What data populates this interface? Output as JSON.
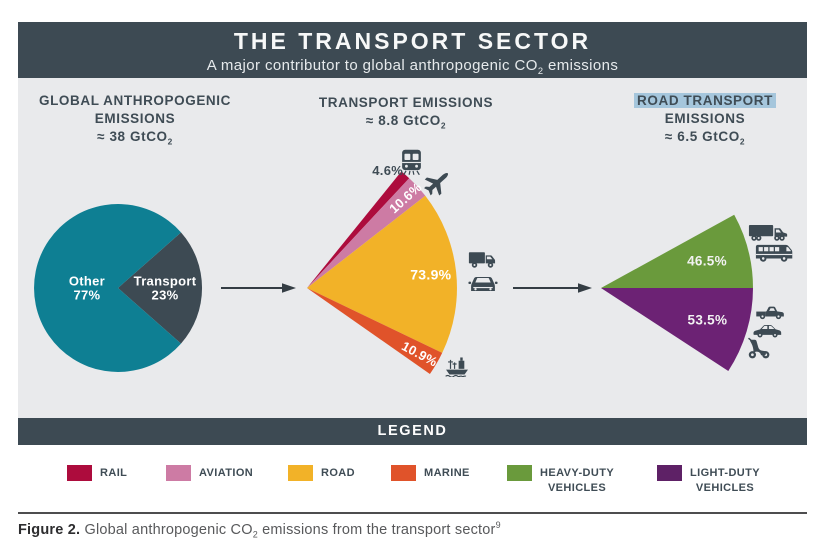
{
  "header": {
    "title": "THE TRANSPORT SECTOR",
    "subtitle_pre": "A major contributor to global anthropogenic CO",
    "subtitle_sub": "2",
    "subtitle_post": " emissions"
  },
  "sections": {
    "global": {
      "line1": "GLOBAL ANTHROPOGENIC",
      "line2": "EMISSIONS",
      "approx_pre": "≈ 38 GtCO",
      "approx_sub": "2"
    },
    "transport": {
      "line1": "TRANSPORT EMISSIONS",
      "approx_pre": "≈ 8.8 GtCO",
      "approx_sub": "2"
    },
    "road": {
      "line1_highlight": "ROAD TRANSPORT",
      "line2": "EMISSIONS",
      "approx_pre": "≈ 6.5 GtCO",
      "approx_sub": "2"
    }
  },
  "colors": {
    "slate": "#3d4a53",
    "panel_gray": "#e9eaec",
    "teal_other": "#0e7f93",
    "rail": "#ad0c3d",
    "aviation": "#cd7ba4",
    "road": "#f2b228",
    "marine": "#e0532a",
    "heavy_duty": "#6a9a3c",
    "light_duty": "#6c2274",
    "highlight_blue": "#a5c6dc"
  },
  "legend": {
    "title": "LEGEND",
    "items": [
      {
        "label": "RAIL",
        "color": "#ad0c3d"
      },
      {
        "label": "AVIATION",
        "color": "#cd7ba4"
      },
      {
        "label": "ROAD",
        "color": "#f2b228"
      },
      {
        "label": "MARINE",
        "color": "#e0532a"
      },
      {
        "label": "HEAVY-DUTY",
        "label2": "VEHICLES",
        "color": "#6a9a3c"
      },
      {
        "label": "LIGHT-DUTY",
        "label2": "VEHICLES",
        "color": "#5e2166"
      }
    ]
  },
  "caption": {
    "bold": "Figure 2.",
    "pre": " Global anthropogenic CO",
    "sub": "2",
    "post": " emissions from the transport sector",
    "sup": "9"
  },
  "chart_data": [
    {
      "id": "global-pie",
      "type": "pie",
      "title": "GLOBAL ANTHROPOGENIC EMISSIONS ≈ 38 GtCO2",
      "total_value": 38,
      "units": "GtCO2",
      "apex": [
        100,
        98
      ],
      "radius": 84,
      "start_angle": 41.4,
      "sweep": 360,
      "slices": [
        {
          "name": "Transport",
          "pct": 23,
          "color": "#3d4a53",
          "label_lines": [
            "Transport",
            "23%"
          ],
          "label_r": 0.56,
          "label_rot": 0,
          "label_color": "#ffffff",
          "label_size": 13
        },
        {
          "name": "Other",
          "pct": 77,
          "color": "#0e7f93",
          "label_lines": [
            "Other",
            "77%"
          ],
          "label_r": 0.37,
          "label_rot": 0,
          "label_color": "#ffffff",
          "label_size": 13
        }
      ]
    },
    {
      "id": "transport-fan",
      "type": "pie",
      "style": "fan",
      "title": "TRANSPORT EMISSIONS ≈ 8.8 GtCO2",
      "total_value": 8.8,
      "units": "GtCO2",
      "apex": [
        12,
        138
      ],
      "radius": 150,
      "start_angle": 51,
      "sweep": 86,
      "slices": [
        {
          "name": "Rail",
          "pct": 4.6,
          "color": "#ad0c3d",
          "label_lines": [
            "4.6%"
          ],
          "label_r": 0.95,
          "label_angle": 55.5,
          "label_rot": 0,
          "label_color": "#3f4c55",
          "label_size": 13
        },
        {
          "name": "Aviation",
          "pct": 10.6,
          "color": "#cd7ba4",
          "label_lines": [
            "10.6%"
          ],
          "label_r": 0.89,
          "label_rot": -42,
          "label_color": "#ffffff",
          "label_size": 13
        },
        {
          "name": "Road",
          "pct": 73.9,
          "color": "#f2b228",
          "label_lines": [
            "73.9%"
          ],
          "label_r": 0.83,
          "label_rot": 0,
          "label_color": "#ffffff",
          "label_size": 14
        },
        {
          "name": "Marine",
          "pct": 10.9,
          "color": "#e0532a",
          "label_lines": [
            "10.9%"
          ],
          "label_r": 0.87,
          "label_rot": 28,
          "label_color": "#ffffff",
          "label_size": 13
        }
      ]
    },
    {
      "id": "road-fan",
      "type": "pie",
      "style": "fan",
      "title": "ROAD TRANSPORT EMISSIONS ≈ 6.5 GtCO2",
      "total_value": 6.5,
      "units": "GtCO2",
      "apex": [
        11,
        83
      ],
      "radius": 152,
      "start_angle": 28.8,
      "sweep": 61.9,
      "slices": [
        {
          "name": "Heavy-duty vehicles",
          "pct": 46.5,
          "color": "#6a9a3c",
          "label_lines": [
            "46.5%"
          ],
          "label_r": 0.72,
          "label_rot": 0,
          "label_color": "#f2f2f2",
          "label_size": 13.5
        },
        {
          "name": "Light-duty vehicles",
          "pct": 53.5,
          "color": "#6c2274",
          "label_lines": [
            "53.5%"
          ],
          "label_r": 0.73,
          "label_rot": 0,
          "label_color": "#f2f2f2",
          "label_size": 13.5
        }
      ]
    }
  ]
}
